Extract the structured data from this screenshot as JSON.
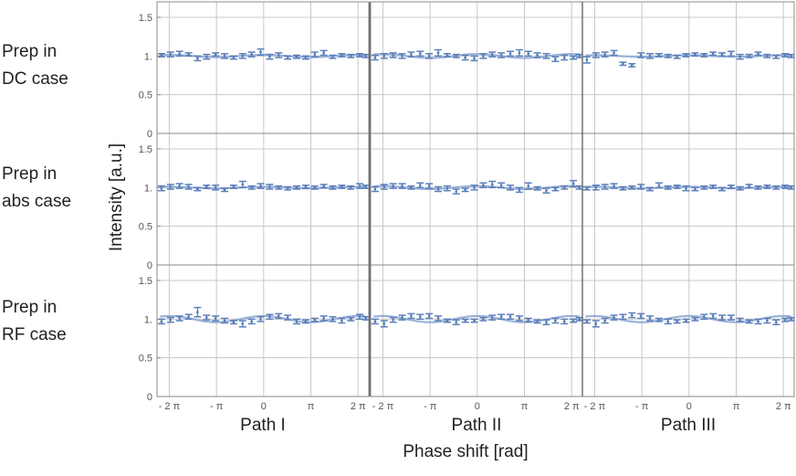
{
  "rows": [
    {
      "label_line1": "Prep in",
      "label_line2": "DC case"
    },
    {
      "label_line1": "Prep in",
      "label_line2": "abs case"
    },
    {
      "label_line1": "Prep in",
      "label_line2": "RF case"
    }
  ],
  "columns": [
    "Path I",
    "Path II",
    "Path III"
  ],
  "xlabel": "Phase shift [rad]",
  "ylabel": "Intensity  [a.u.]",
  "y_ticks": [
    "0",
    "0.5",
    "1.",
    "1.5"
  ],
  "x_ticks": [
    "- 2 π",
    "- π",
    "0",
    "π",
    "2 π"
  ],
  "colors": {
    "data": "#5b7fba",
    "fit": "#8fa9d4",
    "grid": "#c8c8c8",
    "frame": "#888888"
  },
  "chart_data": {
    "type": "scatter",
    "x_range": [
      -7.1,
      7.0
    ],
    "ylim": [
      0,
      1.7
    ],
    "grid": true,
    "x": [
      -6.8,
      -6.2,
      -5.6,
      -5.0,
      -4.4,
      -3.8,
      -3.2,
      -2.6,
      -2.0,
      -1.4,
      -0.8,
      -0.2,
      0.4,
      1.0,
      1.6,
      2.2,
      2.8,
      3.4,
      4.0,
      4.6,
      5.2,
      5.8,
      6.4,
      6.8
    ],
    "panels": [
      {
        "row": 0,
        "column": "Path I",
        "fit_amplitude": 0.015,
        "y": [
          1.01,
          1.02,
          1.03,
          1.02,
          0.97,
          0.99,
          1.02,
          1.0,
          0.98,
          1.0,
          1.02,
          1.05,
          0.99,
          1.01,
          0.98,
          0.99,
          0.98,
          1.02,
          1.04,
          0.99,
          1.01,
          1.0,
          1.01,
          1.0
        ],
        "err": [
          0.02,
          0.03,
          0.03,
          0.02,
          0.03,
          0.03,
          0.02,
          0.03,
          0.02,
          0.03,
          0.03,
          0.04,
          0.03,
          0.03,
          0.02,
          0.02,
          0.02,
          0.03,
          0.03,
          0.02,
          0.02,
          0.02,
          0.02,
          0.02
        ]
      },
      {
        "row": 0,
        "column": "Path II",
        "fit_amplitude": 0.025,
        "y": [
          0.98,
          1.0,
          1.01,
          1.0,
          1.02,
          1.03,
          1.0,
          1.04,
          1.01,
          1.0,
          0.98,
          0.97,
          1.0,
          1.02,
          1.01,
          1.03,
          1.04,
          1.03,
          1.01,
          1.0,
          0.96,
          0.98,
          0.98,
          1.0
        ],
        "err": [
          0.03,
          0.03,
          0.03,
          0.03,
          0.03,
          0.03,
          0.03,
          0.04,
          0.02,
          0.02,
          0.03,
          0.03,
          0.03,
          0.03,
          0.03,
          0.03,
          0.04,
          0.03,
          0.03,
          0.03,
          0.03,
          0.03,
          0.02,
          0.02
        ]
      },
      {
        "row": 0,
        "column": "Path III",
        "fit_amplitude": 0.01,
        "y": [
          0.95,
          1.01,
          1.02,
          1.04,
          0.9,
          0.88,
          1.01,
          1.0,
          1.01,
          1.0,
          0.99,
          1.01,
          1.02,
          1.01,
          1.03,
          1.02,
          1.03,
          0.99,
          1.0,
          1.03,
          1.0,
          0.99,
          1.01,
          1.0
        ],
        "err": [
          0.04,
          0.03,
          0.03,
          0.03,
          0.02,
          0.02,
          0.03,
          0.03,
          0.02,
          0.02,
          0.02,
          0.02,
          0.02,
          0.02,
          0.02,
          0.02,
          0.03,
          0.03,
          0.02,
          0.02,
          0.02,
          0.02,
          0.02,
          0.02
        ]
      },
      {
        "row": 1,
        "column": "Path I",
        "fit_amplitude": 0.01,
        "y": [
          0.99,
          1.01,
          1.02,
          1.01,
          0.98,
          1.01,
          1.0,
          0.97,
          1.01,
          1.04,
          1.0,
          1.02,
          1.01,
          1.0,
          0.99,
          1.0,
          1.01,
          1.0,
          1.02,
          1.0,
          1.01,
          1.0,
          1.02,
          1.01
        ],
        "err": [
          0.03,
          0.03,
          0.03,
          0.03,
          0.02,
          0.02,
          0.03,
          0.02,
          0.02,
          0.04,
          0.02,
          0.03,
          0.03,
          0.02,
          0.02,
          0.02,
          0.02,
          0.02,
          0.02,
          0.02,
          0.02,
          0.02,
          0.03,
          0.02
        ]
      },
      {
        "row": 1,
        "column": "Path II",
        "fit_amplitude": 0.02,
        "y": [
          0.98,
          1.01,
          1.02,
          1.02,
          1.0,
          1.03,
          1.02,
          0.98,
          0.99,
          0.95,
          0.97,
          1.0,
          1.03,
          1.04,
          1.03,
          1.0,
          0.97,
          1.02,
          0.99,
          0.96,
          0.98,
          1.0,
          1.05,
          1.0
        ],
        "err": [
          0.03,
          0.03,
          0.03,
          0.03,
          0.02,
          0.03,
          0.03,
          0.03,
          0.03,
          0.03,
          0.02,
          0.03,
          0.03,
          0.04,
          0.03,
          0.03,
          0.03,
          0.04,
          0.02,
          0.03,
          0.02,
          0.02,
          0.04,
          0.02
        ]
      },
      {
        "row": 1,
        "column": "Path III",
        "fit_amplitude": 0.01,
        "y": [
          0.99,
          1.0,
          1.01,
          1.02,
          0.99,
          1.0,
          1.01,
          0.98,
          1.03,
          1.0,
          1.01,
          0.99,
          0.98,
          1.0,
          1.01,
          0.98,
          1.01,
          0.99,
          1.02,
          1.0,
          1.01,
          1.0,
          1.01,
          1.0
        ],
        "err": [
          0.02,
          0.03,
          0.03,
          0.03,
          0.02,
          0.02,
          0.03,
          0.02,
          0.03,
          0.02,
          0.02,
          0.03,
          0.02,
          0.02,
          0.02,
          0.02,
          0.02,
          0.02,
          0.02,
          0.02,
          0.02,
          0.02,
          0.02,
          0.02
        ]
      },
      {
        "row": 2,
        "column": "Path I",
        "fit_amplitude": 0.04,
        "y": [
          0.97,
          0.99,
          1.01,
          1.03,
          1.09,
          1.02,
          1.01,
          0.98,
          0.96,
          0.94,
          0.97,
          1.0,
          1.03,
          1.04,
          1.02,
          0.97,
          0.97,
          0.99,
          1.01,
          1.0,
          0.98,
          1.0,
          1.03,
          1.01
        ],
        "err": [
          0.03,
          0.03,
          0.03,
          0.03,
          0.06,
          0.03,
          0.03,
          0.03,
          0.02,
          0.04,
          0.03,
          0.03,
          0.03,
          0.03,
          0.03,
          0.03,
          0.02,
          0.02,
          0.03,
          0.03,
          0.03,
          0.02,
          0.03,
          0.02
        ]
      },
      {
        "row": 2,
        "column": "Path II",
        "fit_amplitude": 0.04,
        "y": [
          0.97,
          0.94,
          0.99,
          1.02,
          1.04,
          1.03,
          1.04,
          1.01,
          0.98,
          0.96,
          0.98,
          0.98,
          1.0,
          1.02,
          1.03,
          1.03,
          1.01,
          0.99,
          0.97,
          0.96,
          0.98,
          0.97,
          0.98,
          1.0
        ],
        "err": [
          0.03,
          0.04,
          0.03,
          0.03,
          0.03,
          0.03,
          0.03,
          0.03,
          0.02,
          0.03,
          0.02,
          0.02,
          0.02,
          0.03,
          0.03,
          0.03,
          0.03,
          0.02,
          0.02,
          0.03,
          0.03,
          0.03,
          0.02,
          0.02
        ]
      },
      {
        "row": 2,
        "column": "Path III",
        "fit_amplitude": 0.04,
        "y": [
          0.97,
          0.94,
          0.98,
          1.02,
          1.03,
          1.05,
          1.04,
          1.01,
          0.99,
          0.97,
          0.97,
          0.98,
          1.0,
          1.03,
          1.04,
          1.02,
          1.02,
          0.99,
          0.97,
          0.97,
          0.98,
          0.96,
          0.99,
          1.0
        ],
        "err": [
          0.02,
          0.04,
          0.03,
          0.03,
          0.03,
          0.03,
          0.03,
          0.03,
          0.02,
          0.03,
          0.02,
          0.02,
          0.02,
          0.03,
          0.03,
          0.03,
          0.03,
          0.02,
          0.02,
          0.03,
          0.03,
          0.03,
          0.02,
          0.02
        ]
      }
    ]
  }
}
